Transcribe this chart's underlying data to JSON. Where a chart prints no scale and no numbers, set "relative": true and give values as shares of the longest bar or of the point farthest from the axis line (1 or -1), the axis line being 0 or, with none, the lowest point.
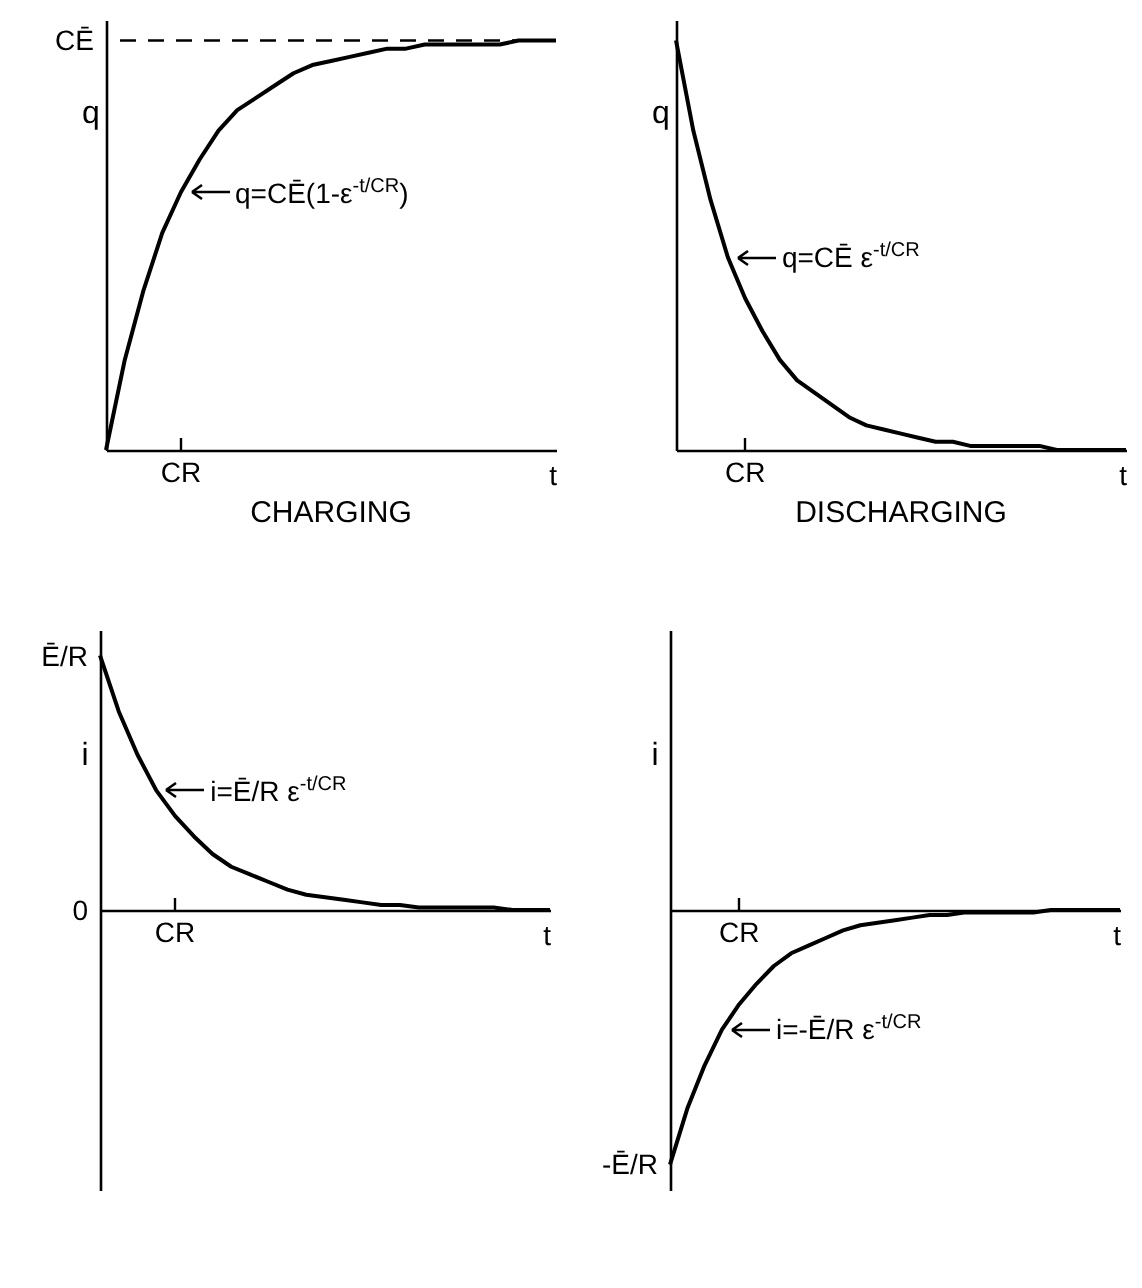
{
  "chart_data": [
    {
      "type": "line",
      "title": "CHARGING",
      "xlabel": "t",
      "ylabel": "q",
      "relative": true,
      "color": "#000000",
      "line_style": "solid",
      "categories": [
        null,
        null,
        null,
        null,
        null,
        null,
        null,
        null,
        null,
        null,
        null,
        null,
        null,
        null,
        null,
        null,
        null,
        null,
        null,
        null,
        null,
        null,
        null,
        null,
        null
      ],
      "values": [
        0,
        0.22,
        0.39,
        0.53,
        0.63,
        0.71,
        0.78,
        0.83,
        0.86,
        0.89,
        0.92,
        0.94,
        0.95,
        0.96,
        0.97,
        0.98,
        0.98,
        0.99,
        0.99,
        0.99,
        0.99,
        0.99,
        1,
        1,
        1
      ],
      "ref_lines": [
        {
          "axis": "y",
          "value": 1,
          "label": "CĒ",
          "line_style": "dashed"
        }
      ],
      "annotations": [
        "CR",
        "q=CĒ(1-ε$^{-t/CR}$)"
      ]
    },
    {
      "type": "line",
      "title": "DISCHARGING",
      "xlabel": "t",
      "ylabel": "q",
      "relative": true,
      "color": "#000000",
      "line_style": "solid",
      "categories": [
        null,
        null,
        null,
        null,
        null,
        null,
        null,
        null,
        null,
        null,
        null,
        null,
        null,
        null,
        null,
        null,
        null,
        null,
        null,
        null,
        null,
        null,
        null,
        null,
        null,
        null,
        null
      ],
      "values": [
        1,
        0.78,
        0.61,
        0.47,
        0.37,
        0.29,
        0.22,
        0.17,
        0.14,
        0.11,
        0.08,
        0.06,
        0.05,
        0.04,
        0.03,
        0.02,
        0.02,
        0.01,
        0.01,
        0.01,
        0.01,
        0.01,
        0,
        0,
        0,
        0,
        0
      ],
      "annotations": [
        "CR",
        "q=CĒ ε$^{-t/CR}$"
      ]
    },
    {
      "type": "line",
      "xlabel": "t",
      "ylabel": "i",
      "relative": true,
      "color": "#000000",
      "line_style": "solid",
      "categories": [
        null,
        null,
        null,
        null,
        null,
        null,
        null,
        null,
        null,
        null,
        null,
        null,
        null,
        null,
        null,
        null,
        null,
        null,
        null,
        null,
        null,
        null,
        null,
        null,
        null
      ],
      "values": [
        1,
        0.78,
        0.61,
        0.47,
        0.37,
        0.29,
        0.22,
        0.17,
        0.14,
        0.11,
        0.08,
        0.06,
        0.05,
        0.04,
        0.03,
        0.02,
        0.02,
        0.01,
        0.01,
        0.01,
        0.01,
        0.01,
        0,
        0,
        0
      ],
      "annotations": [
        "Ē/R",
        "0",
        "CR",
        "i=Ē/R ε$^{-t/CR}$"
      ]
    },
    {
      "type": "line",
      "xlabel": "t",
      "ylabel": "i",
      "relative": true,
      "color": "#000000",
      "line_style": "solid",
      "categories": [
        null,
        null,
        null,
        null,
        null,
        null,
        null,
        null,
        null,
        null,
        null,
        null,
        null,
        null,
        null,
        null,
        null,
        null,
        null,
        null,
        null,
        null,
        null,
        null,
        null,
        null,
        null
      ],
      "values": [
        -1,
        -0.78,
        -0.61,
        -0.47,
        -0.37,
        -0.29,
        -0.22,
        -0.17,
        -0.14,
        -0.11,
        -0.08,
        -0.06,
        -0.05,
        -0.04,
        -0.03,
        -0.02,
        -0.02,
        -0.01,
        -0.01,
        -0.01,
        -0.01,
        -0.01,
        0,
        0,
        0,
        0,
        0
      ],
      "annotations": [
        "-Ē/R",
        "CR",
        "i=-Ē/R ε$^{-t/CR}$"
      ]
    }
  ]
}
